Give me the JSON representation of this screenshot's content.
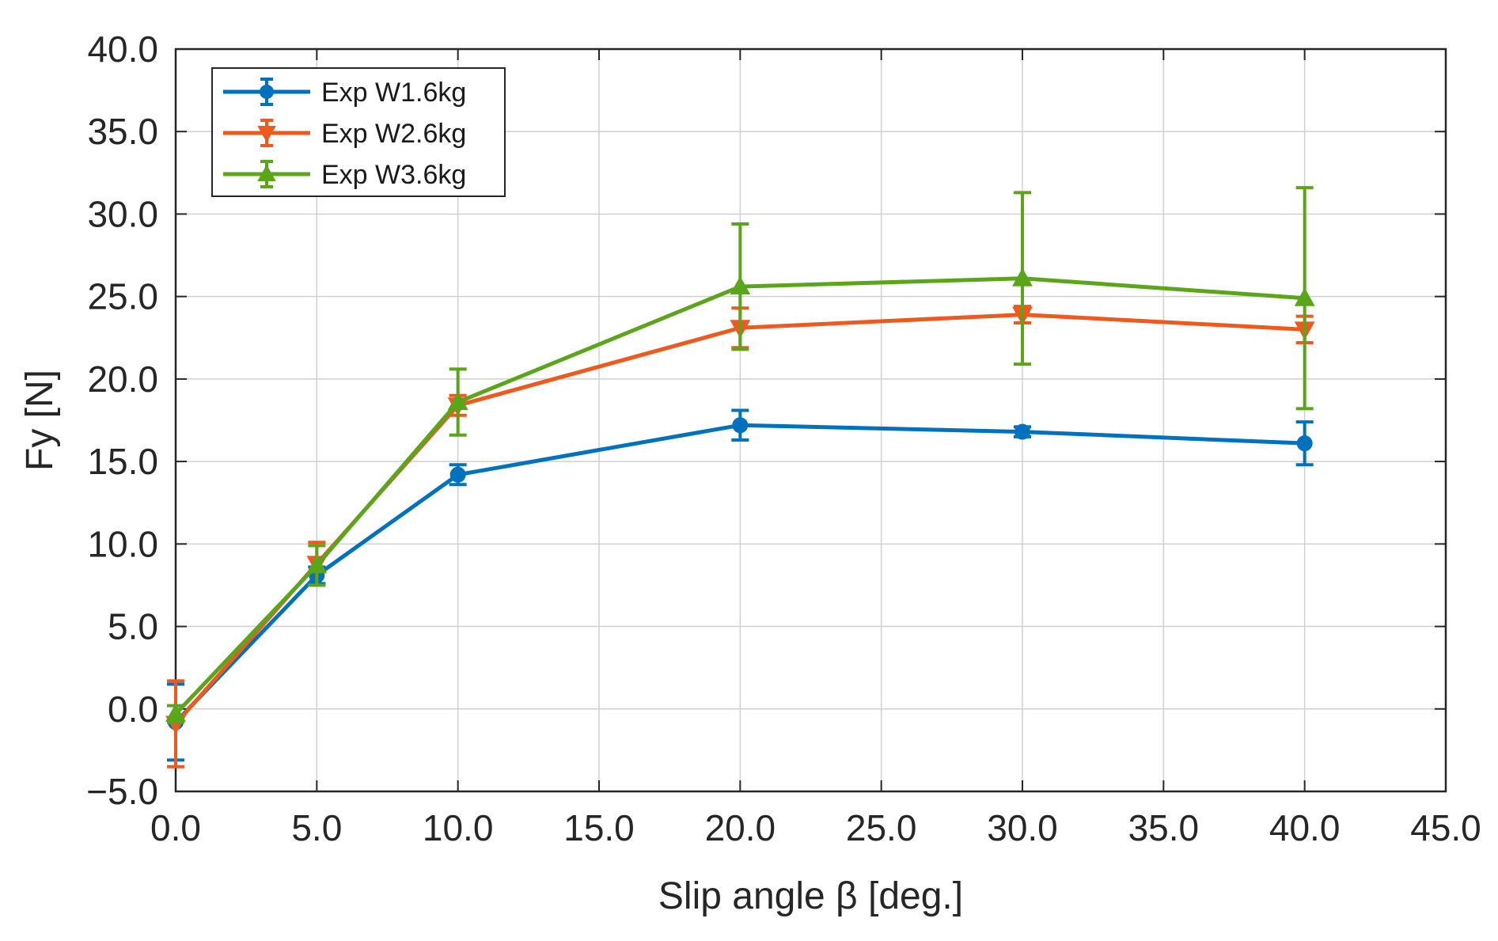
{
  "chart_data": {
    "type": "line",
    "title": "",
    "xlabel": "Slip angle β [deg.]",
    "ylabel": "Fy [N]",
    "xlim": [
      0,
      45
    ],
    "ylim": [
      -5,
      40
    ],
    "xticks": [
      0,
      5,
      10,
      15,
      20,
      25,
      30,
      35,
      40,
      45
    ],
    "yticks": [
      -5,
      0,
      5,
      10,
      15,
      20,
      25,
      30,
      35,
      40
    ],
    "xtick_labels": [
      "0.0",
      "5.0",
      "10.0",
      "15.0",
      "20.0",
      "25.0",
      "30.0",
      "35.0",
      "40.0",
      "45.0"
    ],
    "ytick_labels": [
      "−5.0",
      "0.0",
      "5.0",
      "10.0",
      "15.0",
      "20.0",
      "25.0",
      "30.0",
      "35.0",
      "40.0"
    ],
    "grid": true,
    "legend_position": "top-left",
    "series": [
      {
        "name": "Exp W1.6kg",
        "color": "#0072BD",
        "marker": "circle",
        "x": [
          0,
          5,
          10,
          20,
          30,
          40
        ],
        "y": [
          -0.8,
          8.1,
          14.2,
          17.2,
          16.8,
          16.1
        ],
        "err": [
          2.3,
          0.5,
          0.6,
          0.9,
          0.3,
          1.3
        ]
      },
      {
        "name": "Exp W2.6kg",
        "color": "#EE5A1E",
        "marker": "triangle-down",
        "x": [
          0,
          5,
          10,
          20,
          30,
          40
        ],
        "y": [
          -0.9,
          8.8,
          18.4,
          23.1,
          23.9,
          23.0
        ],
        "err": [
          2.6,
          1.3,
          0.6,
          1.2,
          0.5,
          0.8
        ]
      },
      {
        "name": "Exp W3.6kg",
        "color": "#5BA51B",
        "marker": "triangle-up",
        "x": [
          0,
          5,
          10,
          20,
          30,
          40
        ],
        "y": [
          -0.3,
          8.7,
          18.6,
          25.6,
          26.1,
          24.9
        ],
        "err": [
          0.5,
          1.2,
          2.0,
          3.8,
          5.2,
          6.7
        ]
      }
    ]
  }
}
